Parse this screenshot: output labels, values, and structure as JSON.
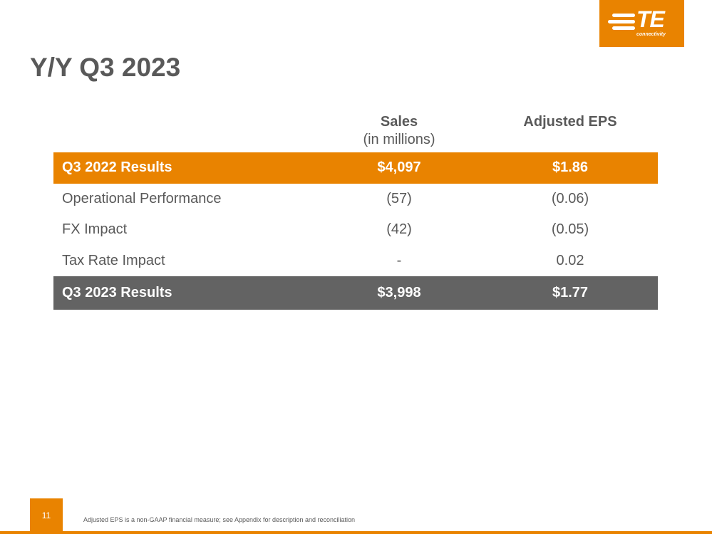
{
  "logo": {
    "mark": "TE",
    "tagline": "connectivity"
  },
  "header": {
    "title": "Y/Y Q3 2023"
  },
  "table": {
    "columns": [
      {
        "label": "Sales",
        "sublabel": "(in millions)"
      },
      {
        "label": "Adjusted EPS"
      }
    ],
    "rows": [
      [
        "Q3 2022 Results",
        "$4,097",
        "$1.86"
      ],
      [
        "Operational Performance",
        "(57)",
        "(0.06)"
      ],
      [
        "FX Impact",
        "(42)",
        "(0.05)"
      ],
      [
        "Tax Rate Impact",
        "-",
        "0.02"
      ],
      [
        "Q3 2023 Results",
        "$3,998",
        "$1.77"
      ]
    ]
  },
  "footer": {
    "page_number": 11,
    "note": "Adjusted EPS is a non-GAAP financial measure; see Appendix for description and reconciliation"
  }
}
